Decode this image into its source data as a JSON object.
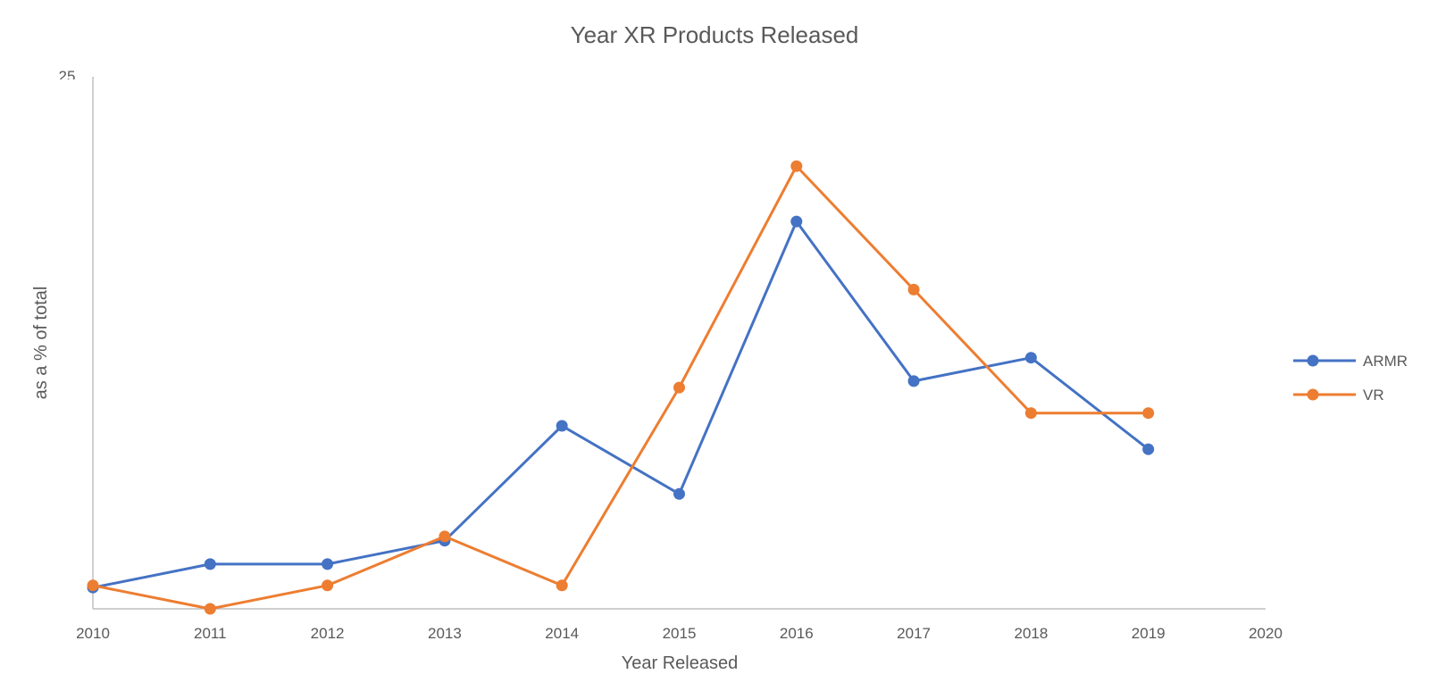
{
  "chart_data": {
    "type": "line",
    "title": "Year XR Products Released",
    "xlabel": "Year Released",
    "ylabel": "as a % of total",
    "x": [
      2010,
      2011,
      2012,
      2013,
      2014,
      2015,
      2016,
      2017,
      2018,
      2019
    ],
    "x_ticks": [
      "2010",
      "2011",
      "2012",
      "2013",
      "2014",
      "2015",
      "2016",
      "2017",
      "2018",
      "2019",
      "2020"
    ],
    "xlim": [
      2010,
      2020
    ],
    "ylim": [
      0,
      25
    ],
    "y_tick_partial": "25",
    "grid": false,
    "legend_position": "right",
    "series": [
      {
        "name": "ARMR",
        "color": "#4472C4",
        "values": [
          1.0,
          2.1,
          2.1,
          3.2,
          8.6,
          5.4,
          18.2,
          10.7,
          11.8,
          7.5
        ]
      },
      {
        "name": "VR",
        "color": "#ED7D31",
        "values": [
          1.1,
          0.0,
          1.1,
          3.4,
          1.1,
          10.4,
          20.8,
          15.0,
          9.2,
          9.2
        ]
      }
    ]
  }
}
